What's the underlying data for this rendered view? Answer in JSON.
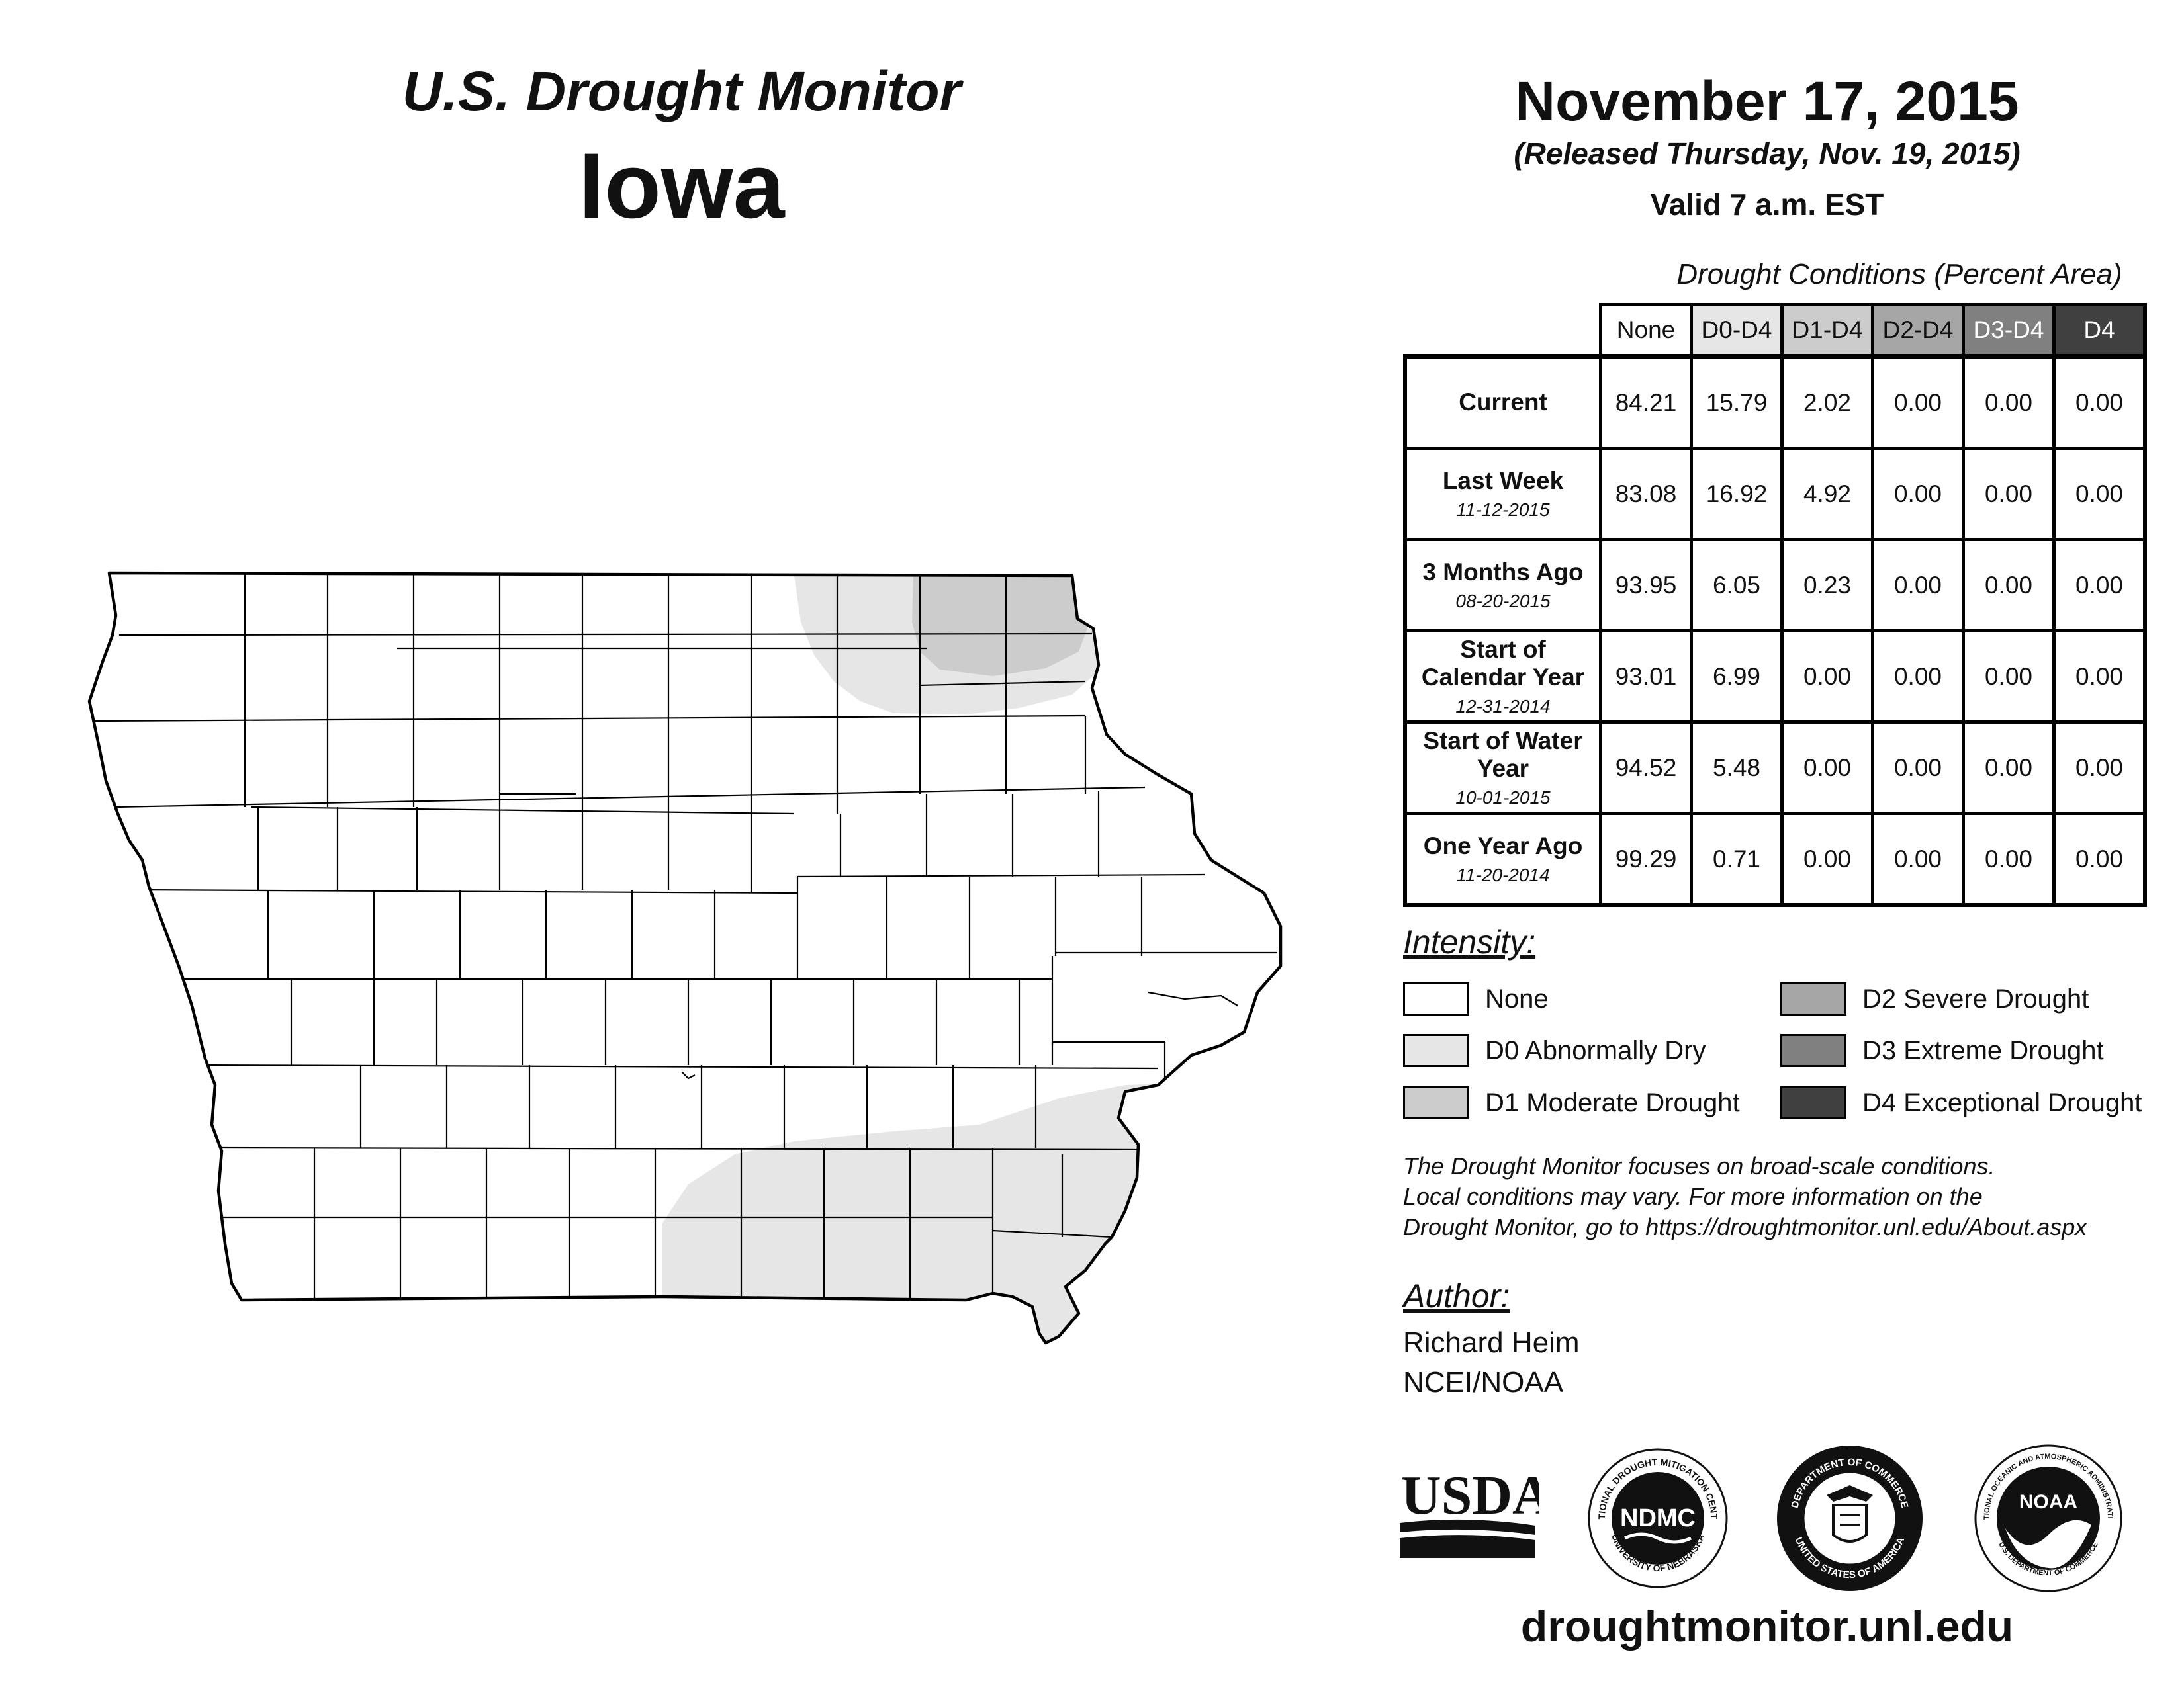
{
  "header": {
    "title_1": "U.S. Drought Monitor",
    "title_2": "Iowa",
    "date": "November 17, 2015",
    "released": "(Released Thursday, Nov. 19, 2015)",
    "valid": "Valid 7 a.m. EST"
  },
  "table": {
    "caption": "Drought Conditions (Percent Area)",
    "columns": [
      {
        "label": "None",
        "bg": "#ffffff",
        "fg": "#111111"
      },
      {
        "label": "D0-D4",
        "bg": "#e6e6e6",
        "fg": "#111111"
      },
      {
        "label": "D1-D4",
        "bg": "#cccccc",
        "fg": "#111111"
      },
      {
        "label": "D2-D4",
        "bg": "#a6a6a6",
        "fg": "#111111"
      },
      {
        "label": "D3-D4",
        "bg": "#808080",
        "fg": "#ffffff"
      },
      {
        "label": "D4",
        "bg": "#404040",
        "fg": "#ffffff"
      }
    ],
    "rows": [
      {
        "label": "Current",
        "sub": "",
        "values": [
          "84.21",
          "15.79",
          "2.02",
          "0.00",
          "0.00",
          "0.00"
        ]
      },
      {
        "label": "Last Week",
        "sub": "11-12-2015",
        "values": [
          "83.08",
          "16.92",
          "4.92",
          "0.00",
          "0.00",
          "0.00"
        ]
      },
      {
        "label": "3 Months Ago",
        "sub": "08-20-2015",
        "values": [
          "93.95",
          "6.05",
          "0.23",
          "0.00",
          "0.00",
          "0.00"
        ]
      },
      {
        "label": "Start of Calendar Year",
        "sub": "12-31-2014",
        "values": [
          "93.01",
          "6.99",
          "0.00",
          "0.00",
          "0.00",
          "0.00"
        ]
      },
      {
        "label": "Start of Water Year",
        "sub": "10-01-2015",
        "values": [
          "94.52",
          "5.48",
          "0.00",
          "0.00",
          "0.00",
          "0.00"
        ]
      },
      {
        "label": "One Year Ago",
        "sub": "11-20-2014",
        "values": [
          "99.29",
          "0.71",
          "0.00",
          "0.00",
          "0.00",
          "0.00"
        ]
      }
    ]
  },
  "legend": {
    "title": "Intensity:",
    "items": [
      {
        "label": "None",
        "color": "#ffffff"
      },
      {
        "label": "D0 Abnormally Dry",
        "color": "#e6e6e6"
      },
      {
        "label": "D1 Moderate Drought",
        "color": "#cccccc"
      },
      {
        "label": "D2 Severe Drought",
        "color": "#a6a6a6"
      },
      {
        "label": "D3 Extreme Drought",
        "color": "#808080"
      },
      {
        "label": "D4 Exceptional Drought",
        "color": "#404040"
      }
    ]
  },
  "note": {
    "line_1": "The Drought Monitor focuses on broad-scale conditions.",
    "line_2": "Local conditions may vary. For more information on the",
    "line_3": "Drought Monitor, go to https://droughtmonitor.unl.edu/About.aspx"
  },
  "author": {
    "title": "Author:",
    "name": "Richard Heim",
    "org": "NCEI/NOAA"
  },
  "logos": {
    "usda": "USDA",
    "ndmc": "NDMC",
    "ndmc_ring_top": "NATIONAL DROUGHT MITIGATION CENTER",
    "ndmc_ring_bottom": "UNIVERSITY OF NEBRASKA",
    "doc_ring_top": "DEPARTMENT OF COMMERCE",
    "doc_ring_bottom": "UNITED STATES OF AMERICA",
    "noaa": "NOAA",
    "noaa_ring_top": "NATIONAL OCEANIC AND ATMOSPHERIC ADMINISTRATION",
    "noaa_ring_bottom": "U.S. DEPARTMENT OF COMMERCE"
  },
  "footer": {
    "url": "droughtmonitor.unl.edu"
  },
  "map": {
    "fill_none": "#ffffff",
    "fill_d0": "#e6e6e6",
    "fill_d1": "#cccccc",
    "outline": "#000000"
  }
}
